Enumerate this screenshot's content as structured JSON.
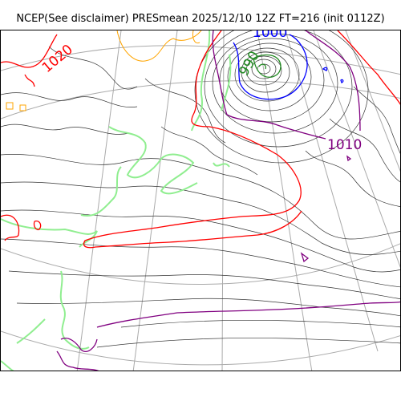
{
  "title": "NCEP(See disclaimer) PRESmean 2025/12/10 12Z FT=216 (init 0112Z)",
  "labels": {
    "l1020": "1020",
    "l1000": "1000",
    "l990": "990",
    "l1010": "1010"
  },
  "colors": {
    "c1020": "#ff0000",
    "c1000": "#0000ff",
    "c990": "#228b22",
    "c1010": "#800080",
    "coast": "#90ee90",
    "isobar": "#333333",
    "graticule": "#aaaaaa",
    "c1030": "#ffa500"
  }
}
